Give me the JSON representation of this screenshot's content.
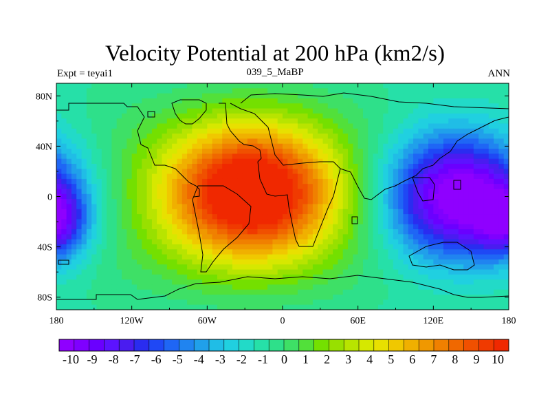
{
  "chart_data": {
    "type": "heatmap",
    "title": "Velocity Potential at 200 hPa (km2/s)",
    "subtitle_left": "Expt = teyai1",
    "subtitle_center": "039_5_MaBP",
    "subtitle_right": "ANN",
    "x_ticks": [
      "180",
      "120W",
      "60W",
      "0",
      "60E",
      "120E",
      "180"
    ],
    "y_ticks": [
      "80N",
      "40N",
      "0",
      "40S",
      "80S"
    ],
    "xlim": [
      -180,
      180
    ],
    "ylim": [
      -90,
      90
    ],
    "colorbar_labels": [
      "-10",
      "-9",
      "-8",
      "-7",
      "-6",
      "-5",
      "-4",
      "-3",
      "-2",
      "-1",
      "0",
      "1",
      "2",
      "3",
      "4",
      "5",
      "6",
      "7",
      "8",
      "9",
      "10"
    ],
    "colorbar_range": [
      -10,
      10
    ],
    "field_features": [
      {
        "type": "max",
        "lon": -25,
        "lat": 3,
        "value": 10
      },
      {
        "type": "min",
        "lon": 140,
        "lat": 0,
        "value": -10
      },
      {
        "type": "min",
        "lon": -180,
        "lat": -20,
        "value": -8
      }
    ],
    "colors": [
      "#8f00ff",
      "#7f00ff",
      "#6a00ff",
      "#5c13ff",
      "#4a1cf0",
      "#2a2cf0",
      "#1f48f5",
      "#1f66f5",
      "#2084f0",
      "#20a0ea",
      "#20bde6",
      "#20d0e0",
      "#22dac8",
      "#26e0a8",
      "#2ee08a",
      "#3ee066",
      "#52e03a",
      "#74e000",
      "#98e000",
      "#b8e400",
      "#d6e800",
      "#e8e000",
      "#f0c800",
      "#f0b000",
      "#f09800",
      "#f08000",
      "#f06800",
      "#f05000",
      "#f03a00",
      "#f02800"
    ]
  }
}
